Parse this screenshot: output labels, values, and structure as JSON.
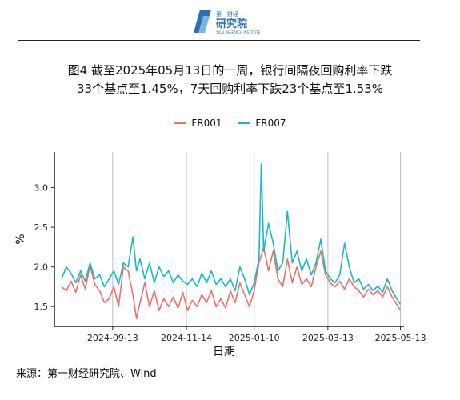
{
  "logo": {
    "brand_top": "第一财经",
    "brand_main": "研究院",
    "brand_en": "YICAI RESEARCH INSTITUTE"
  },
  "title_line1": "图4  截至2025年05月13日的一周，银行间隔夜回购利率下跌",
  "title_line2": "33个基点至1.45%，7天回购利率下跌23个基点至1.53%",
  "source": "来源：第一财经研究院、Wind",
  "colors": {
    "FR001": "#f0706b",
    "FR007": "#1ab8c4",
    "grid": "#bdbdbd",
    "axis": "#222222"
  },
  "chart_data": {
    "type": "line",
    "xlabel": "日期",
    "ylabel": "%",
    "x_ticks": [
      "2024-09-13",
      "2024-11-14",
      "2025-01-10",
      "2025-03-13",
      "2025-05-13"
    ],
    "y_ticks": [
      "1.5",
      "2.0",
      "2.5",
      "3.0"
    ],
    "ylim": [
      1.25,
      3.45
    ],
    "xlim": [
      "2024-07-26",
      "2025-05-16"
    ],
    "grid": "vertical-major",
    "legend_position": "top",
    "series": [
      {
        "name": "FR001",
        "points": [
          [
            "2024-08-01",
            1.75
          ],
          [
            "2024-08-05",
            1.7
          ],
          [
            "2024-08-09",
            1.82
          ],
          [
            "2024-08-13",
            1.68
          ],
          [
            "2024-08-17",
            1.9
          ],
          [
            "2024-08-21",
            1.72
          ],
          [
            "2024-08-25",
            2.02
          ],
          [
            "2024-08-29",
            1.78
          ],
          [
            "2024-09-02",
            1.7
          ],
          [
            "2024-09-06",
            1.55
          ],
          [
            "2024-09-10",
            1.6
          ],
          [
            "2024-09-14",
            1.75
          ],
          [
            "2024-09-18",
            1.5
          ],
          [
            "2024-09-22",
            2.0
          ],
          [
            "2024-09-26",
            1.95
          ],
          [
            "2024-09-30",
            1.65
          ],
          [
            "2024-10-03",
            1.35
          ],
          [
            "2024-10-06",
            1.55
          ],
          [
            "2024-10-10",
            1.8
          ],
          [
            "2024-10-14",
            1.5
          ],
          [
            "2024-10-18",
            1.7
          ],
          [
            "2024-10-22",
            1.45
          ],
          [
            "2024-10-26",
            1.6
          ],
          [
            "2024-10-30",
            1.5
          ],
          [
            "2024-11-03",
            1.62
          ],
          [
            "2024-11-07",
            1.48
          ],
          [
            "2024-11-11",
            1.68
          ],
          [
            "2024-11-15",
            1.45
          ],
          [
            "2024-11-19",
            1.58
          ],
          [
            "2024-11-23",
            1.5
          ],
          [
            "2024-11-27",
            1.65
          ],
          [
            "2024-12-01",
            1.55
          ],
          [
            "2024-12-05",
            1.7
          ],
          [
            "2024-12-09",
            1.5
          ],
          [
            "2024-12-13",
            1.6
          ],
          [
            "2024-12-17",
            1.48
          ],
          [
            "2024-12-21",
            1.7
          ],
          [
            "2024-12-25",
            1.55
          ],
          [
            "2024-12-29",
            1.8
          ],
          [
            "2025-01-02",
            1.65
          ],
          [
            "2025-01-06",
            1.5
          ],
          [
            "2025-01-10",
            1.7
          ],
          [
            "2025-01-14",
            2.05
          ],
          [
            "2025-01-18",
            2.25
          ],
          [
            "2025-01-22",
            1.95
          ],
          [
            "2025-01-26",
            2.2
          ],
          [
            "2025-01-30",
            1.85
          ],
          [
            "2025-02-03",
            1.75
          ],
          [
            "2025-02-07",
            2.1
          ],
          [
            "2025-02-11",
            1.8
          ],
          [
            "2025-02-15",
            2.0
          ],
          [
            "2025-02-19",
            1.78
          ],
          [
            "2025-02-23",
            1.85
          ],
          [
            "2025-02-27",
            1.75
          ],
          [
            "2025-03-03",
            2.0
          ],
          [
            "2025-03-07",
            2.2
          ],
          [
            "2025-03-11",
            1.9
          ],
          [
            "2025-03-15",
            1.8
          ],
          [
            "2025-03-19",
            1.75
          ],
          [
            "2025-03-23",
            1.82
          ],
          [
            "2025-03-27",
            1.72
          ],
          [
            "2025-03-31",
            1.85
          ],
          [
            "2025-04-04",
            1.75
          ],
          [
            "2025-04-08",
            1.7
          ],
          [
            "2025-04-12",
            1.62
          ],
          [
            "2025-04-16",
            1.72
          ],
          [
            "2025-04-20",
            1.65
          ],
          [
            "2025-04-24",
            1.7
          ],
          [
            "2025-04-28",
            1.62
          ],
          [
            "2025-05-02",
            1.75
          ],
          [
            "2025-05-06",
            1.62
          ],
          [
            "2025-05-09",
            1.55
          ],
          [
            "2025-05-13",
            1.45
          ]
        ]
      },
      {
        "name": "FR007",
        "points": [
          [
            "2024-08-01",
            1.85
          ],
          [
            "2024-08-05",
            2.0
          ],
          [
            "2024-08-09",
            1.92
          ],
          [
            "2024-08-13",
            1.8
          ],
          [
            "2024-08-17",
            1.95
          ],
          [
            "2024-08-21",
            1.82
          ],
          [
            "2024-08-25",
            2.05
          ],
          [
            "2024-08-29",
            1.85
          ],
          [
            "2024-09-02",
            1.9
          ],
          [
            "2024-09-06",
            1.75
          ],
          [
            "2024-09-10",
            1.85
          ],
          [
            "2024-09-14",
            1.95
          ],
          [
            "2024-09-18",
            1.78
          ],
          [
            "2024-09-22",
            2.05
          ],
          [
            "2024-09-26",
            2.0
          ],
          [
            "2024-09-30",
            2.38
          ],
          [
            "2024-10-03",
            1.95
          ],
          [
            "2024-10-06",
            2.1
          ],
          [
            "2024-10-10",
            1.85
          ],
          [
            "2024-10-14",
            2.05
          ],
          [
            "2024-10-18",
            1.8
          ],
          [
            "2024-10-22",
            2.0
          ],
          [
            "2024-10-26",
            1.88
          ],
          [
            "2024-10-30",
            1.95
          ],
          [
            "2024-11-03",
            1.8
          ],
          [
            "2024-11-07",
            1.9
          ],
          [
            "2024-11-11",
            1.82
          ],
          [
            "2024-11-15",
            1.78
          ],
          [
            "2024-11-19",
            1.85
          ],
          [
            "2024-11-23",
            1.75
          ],
          [
            "2024-11-27",
            1.92
          ],
          [
            "2024-12-01",
            1.8
          ],
          [
            "2024-12-05",
            1.95
          ],
          [
            "2024-12-09",
            1.78
          ],
          [
            "2024-12-13",
            1.85
          ],
          [
            "2024-12-17",
            1.75
          ],
          [
            "2024-12-21",
            1.85
          ],
          [
            "2024-12-25",
            1.7
          ],
          [
            "2024-12-29",
            2.0
          ],
          [
            "2025-01-02",
            1.85
          ],
          [
            "2025-01-06",
            1.65
          ],
          [
            "2025-01-10",
            1.8
          ],
          [
            "2025-01-14",
            2.1
          ],
          [
            "2025-01-16",
            3.3
          ],
          [
            "2025-01-18",
            2.2
          ],
          [
            "2025-01-22",
            2.55
          ],
          [
            "2025-01-26",
            2.3
          ],
          [
            "2025-01-30",
            1.95
          ],
          [
            "2025-02-03",
            2.05
          ],
          [
            "2025-02-07",
            2.7
          ],
          [
            "2025-02-11",
            2.05
          ],
          [
            "2025-02-15",
            2.2
          ],
          [
            "2025-02-19",
            1.95
          ],
          [
            "2025-02-23",
            2.1
          ],
          [
            "2025-02-27",
            1.9
          ],
          [
            "2025-03-03",
            2.05
          ],
          [
            "2025-03-07",
            2.35
          ],
          [
            "2025-03-11",
            1.95
          ],
          [
            "2025-03-15",
            1.85
          ],
          [
            "2025-03-19",
            1.8
          ],
          [
            "2025-03-23",
            1.9
          ],
          [
            "2025-03-27",
            2.3
          ],
          [
            "2025-03-31",
            2.0
          ],
          [
            "2025-04-04",
            1.8
          ],
          [
            "2025-04-08",
            1.85
          ],
          [
            "2025-04-12",
            1.72
          ],
          [
            "2025-04-16",
            1.78
          ],
          [
            "2025-04-20",
            1.7
          ],
          [
            "2025-04-24",
            1.76
          ],
          [
            "2025-04-28",
            1.68
          ],
          [
            "2025-05-02",
            1.85
          ],
          [
            "2025-05-06",
            1.7
          ],
          [
            "2025-05-09",
            1.62
          ],
          [
            "2025-05-13",
            1.53
          ]
        ]
      }
    ]
  }
}
